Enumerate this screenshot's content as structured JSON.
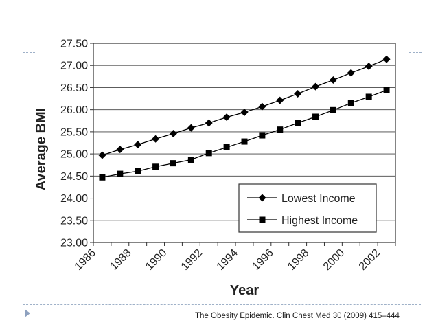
{
  "caption": "The Obesity Epidemic. Clin Chest Med 30 (2009) 415–444",
  "chart_data": {
    "type": "line",
    "title": "",
    "xlabel": "Year",
    "ylabel": "Average BMI",
    "x": [
      1986.5,
      1987.5,
      1988.5,
      1989.5,
      1990.5,
      1991.5,
      1992.5,
      1993.5,
      1994.5,
      1995.5,
      1996.5,
      1997.5,
      1998.5,
      1999.5,
      2000.5,
      2001.5,
      2002.5
    ],
    "x_ticks": [
      "1986",
      "1988",
      "1990",
      "1992",
      "1994",
      "1996",
      "1998",
      "2000",
      "2002"
    ],
    "xlim": [
      1986,
      2003
    ],
    "y_ticks": [
      "23.00",
      "23.50",
      "24.00",
      "24.50",
      "25.00",
      "25.50",
      "26.00",
      "26.50",
      "27.00",
      "27.50"
    ],
    "ylim": [
      23.0,
      27.5
    ],
    "grid": "horizontal",
    "legend_position": "bottom-right",
    "series": [
      {
        "name": "Lowest Income",
        "marker": "diamond",
        "color": "#000000",
        "values": [
          24.97,
          25.1,
          25.21,
          25.34,
          25.46,
          25.59,
          25.7,
          25.83,
          25.94,
          26.07,
          26.21,
          26.36,
          26.52,
          26.67,
          26.83,
          26.98,
          27.14
        ]
      },
      {
        "name": "Highest Income",
        "marker": "square",
        "color": "#000000",
        "values": [
          24.47,
          24.55,
          24.61,
          24.71,
          24.79,
          24.87,
          25.02,
          25.15,
          25.28,
          25.42,
          25.55,
          25.7,
          25.84,
          25.99,
          26.15,
          26.29,
          26.44
        ]
      }
    ]
  }
}
